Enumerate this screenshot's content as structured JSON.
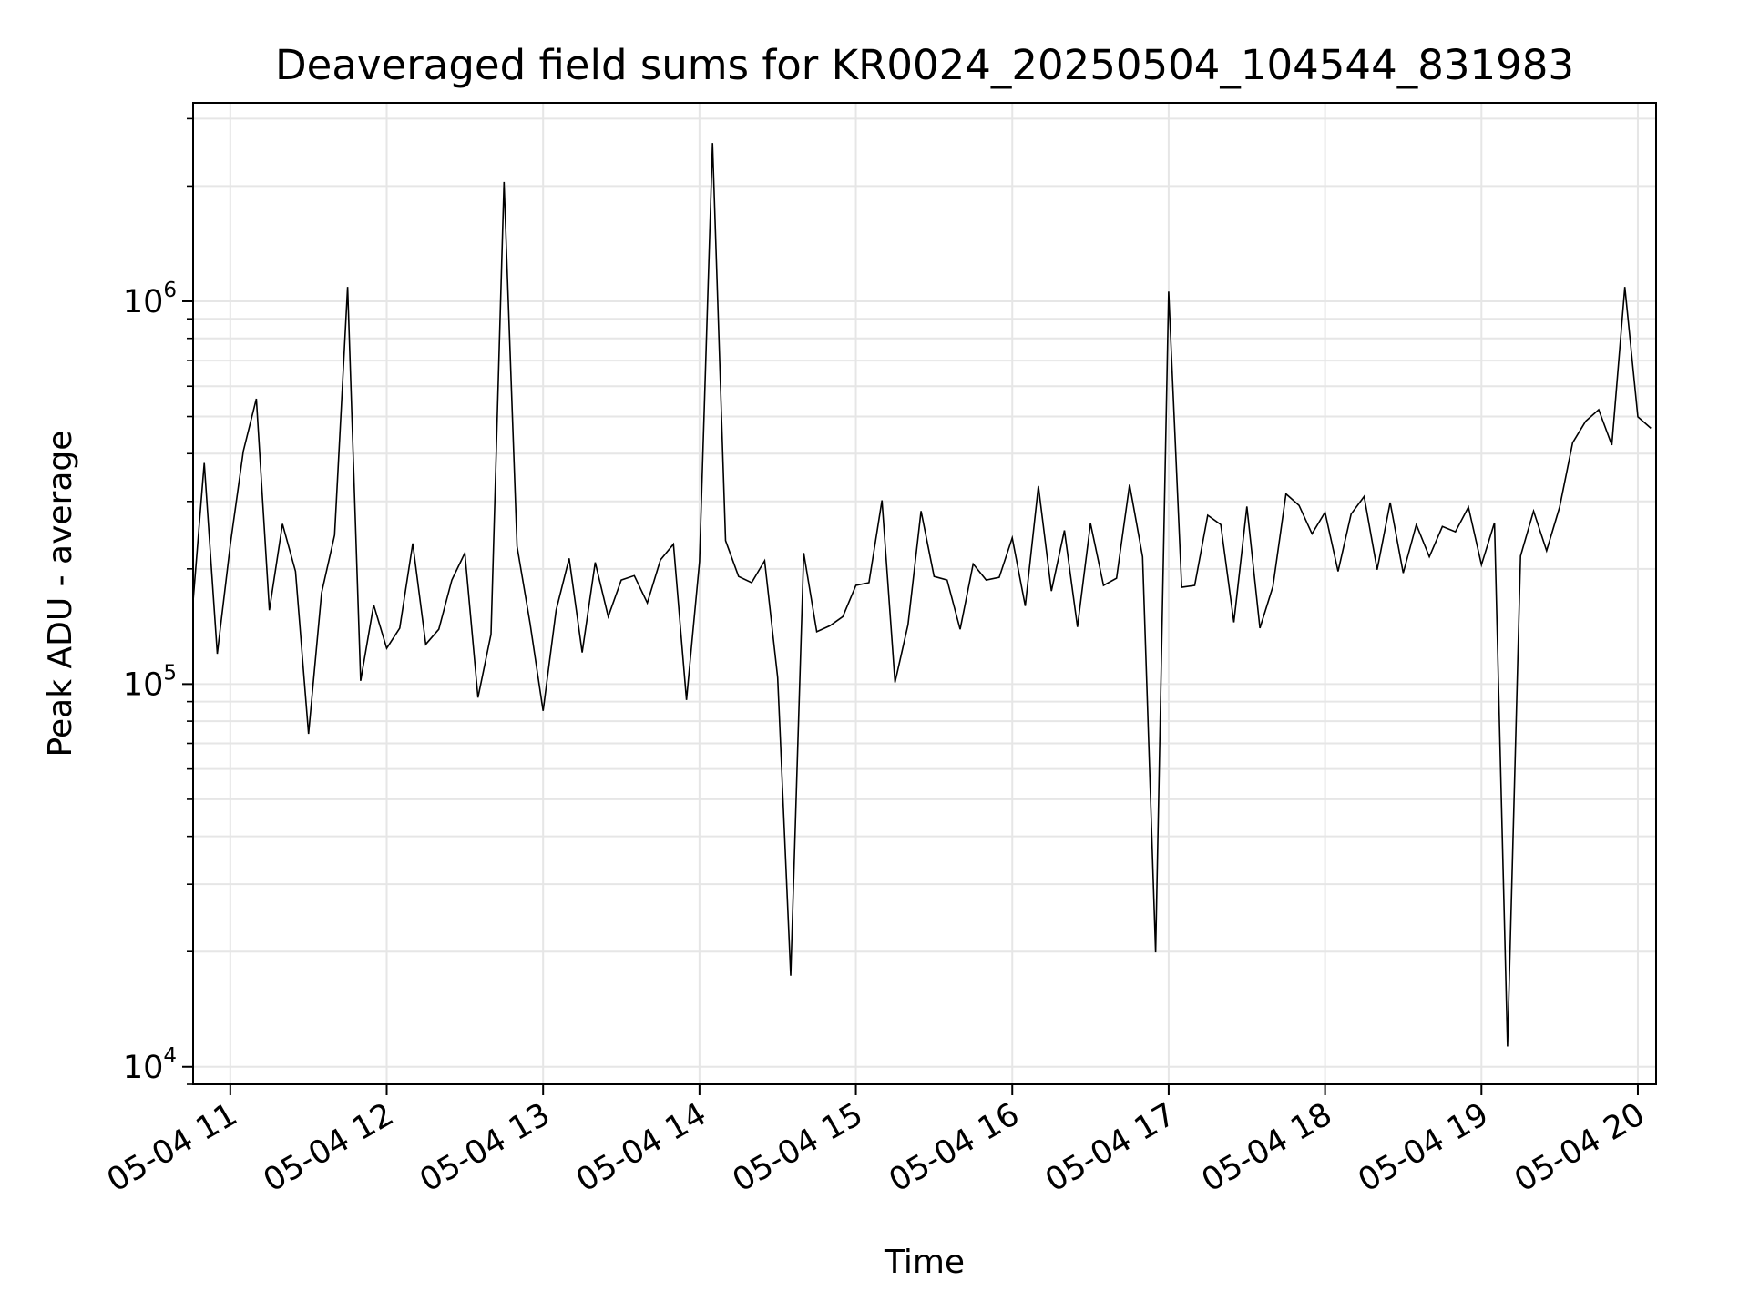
{
  "chart_data": {
    "type": "line",
    "title": "Deaveraged field sums for KR0024_20250504_104544_831983",
    "xlabel": "Time",
    "ylabel": "Peak ADU - average",
    "xlim": [
      "2025-05-04T10:45:44",
      "2025-05-04T20:07:00"
    ],
    "ylim": [
      9000,
      3300000
    ],
    "yscale": "log",
    "grid": true,
    "legend": "none",
    "line_color": "#000000",
    "grid_color": "#e6e6e6",
    "x_ticks": [
      {
        "value": "2025-05-04T11:00",
        "label": "05-04 11"
      },
      {
        "value": "2025-05-04T12:00",
        "label": "05-04 12"
      },
      {
        "value": "2025-05-04T13:00",
        "label": "05-04 13"
      },
      {
        "value": "2025-05-04T14:00",
        "label": "05-04 14"
      },
      {
        "value": "2025-05-04T15:00",
        "label": "05-04 15"
      },
      {
        "value": "2025-05-04T16:00",
        "label": "05-04 16"
      },
      {
        "value": "2025-05-04T17:00",
        "label": "05-04 17"
      },
      {
        "value": "2025-05-04T18:00",
        "label": "05-04 18"
      },
      {
        "value": "2025-05-04T19:00",
        "label": "05-04 19"
      },
      {
        "value": "2025-05-04T20:00",
        "label": "05-04 20"
      }
    ],
    "y_ticks": [
      {
        "value": 10000,
        "base": "10",
        "exp": "4"
      },
      {
        "value": 100000,
        "base": "10",
        "exp": "5"
      },
      {
        "value": 1000000,
        "base": "10",
        "exp": "6"
      }
    ],
    "x": [
      "2025-05-04T10:45",
      "2025-05-04T10:50",
      "2025-05-04T10:55",
      "2025-05-04T11:00",
      "2025-05-04T11:05",
      "2025-05-04T11:10",
      "2025-05-04T11:15",
      "2025-05-04T11:20",
      "2025-05-04T11:25",
      "2025-05-04T11:30",
      "2025-05-04T11:35",
      "2025-05-04T11:40",
      "2025-05-04T11:45",
      "2025-05-04T11:50",
      "2025-05-04T11:55",
      "2025-05-04T12:00",
      "2025-05-04T12:05",
      "2025-05-04T12:10",
      "2025-05-04T12:15",
      "2025-05-04T12:20",
      "2025-05-04T12:25",
      "2025-05-04T12:30",
      "2025-05-04T12:35",
      "2025-05-04T12:40",
      "2025-05-04T12:45",
      "2025-05-04T12:50",
      "2025-05-04T12:55",
      "2025-05-04T13:00",
      "2025-05-04T13:05",
      "2025-05-04T13:10",
      "2025-05-04T13:15",
      "2025-05-04T13:20",
      "2025-05-04T13:25",
      "2025-05-04T13:30",
      "2025-05-04T13:35",
      "2025-05-04T13:40",
      "2025-05-04T13:45",
      "2025-05-04T13:50",
      "2025-05-04T13:55",
      "2025-05-04T14:00",
      "2025-05-04T14:05",
      "2025-05-04T14:10",
      "2025-05-04T14:15",
      "2025-05-04T14:20",
      "2025-05-04T14:25",
      "2025-05-04T14:30",
      "2025-05-04T14:35",
      "2025-05-04T14:40",
      "2025-05-04T14:45",
      "2025-05-04T14:50",
      "2025-05-04T14:55",
      "2025-05-04T15:00",
      "2025-05-04T15:05",
      "2025-05-04T15:10",
      "2025-05-04T15:15",
      "2025-05-04T15:20",
      "2025-05-04T15:25",
      "2025-05-04T15:30",
      "2025-05-04T15:35",
      "2025-05-04T15:40",
      "2025-05-04T15:45",
      "2025-05-04T15:50",
      "2025-05-04T15:55",
      "2025-05-04T16:00",
      "2025-05-04T16:05",
      "2025-05-04T16:10",
      "2025-05-04T16:15",
      "2025-05-04T16:20",
      "2025-05-04T16:25",
      "2025-05-04T16:30",
      "2025-05-04T16:35",
      "2025-05-04T16:40",
      "2025-05-04T16:45",
      "2025-05-04T16:50",
      "2025-05-04T16:55",
      "2025-05-04T17:00",
      "2025-05-04T17:05",
      "2025-05-04T17:10",
      "2025-05-04T17:15",
      "2025-05-04T17:20",
      "2025-05-04T17:25",
      "2025-05-04T17:30",
      "2025-05-04T17:35",
      "2025-05-04T17:40",
      "2025-05-04T17:45",
      "2025-05-04T17:50",
      "2025-05-04T17:55",
      "2025-05-04T18:00",
      "2025-05-04T18:05",
      "2025-05-04T18:10",
      "2025-05-04T18:15",
      "2025-05-04T18:20",
      "2025-05-04T18:25",
      "2025-05-04T18:30",
      "2025-05-04T18:35",
      "2025-05-04T18:40",
      "2025-05-04T18:45",
      "2025-05-04T18:50",
      "2025-05-04T18:55",
      "2025-05-04T19:00",
      "2025-05-04T19:05",
      "2025-05-04T19:10",
      "2025-05-04T19:15",
      "2025-05-04T19:20",
      "2025-05-04T19:25",
      "2025-05-04T19:30",
      "2025-05-04T19:35",
      "2025-05-04T19:40",
      "2025-05-04T19:45",
      "2025-05-04T19:50",
      "2025-05-04T19:55",
      "2025-05-04T20:00",
      "2025-05-04T20:05"
    ],
    "series": [
      {
        "values": [
          165000,
          378000,
          120000,
          231000,
          406000,
          556000,
          156000,
          262000,
          197000,
          74100,
          173000,
          245000,
          1090000,
          102000,
          161000,
          124000,
          140000,
          233000,
          127000,
          139000,
          187000,
          220000,
          92200,
          135000,
          2050000,
          229000,
          144000,
          85100,
          156000,
          213000,
          121000,
          208000,
          150000,
          187000,
          192000,
          163000,
          211000,
          232000,
          90900,
          209000,
          2590000,
          237000,
          191000,
          184000,
          210000,
          104000,
          17300,
          220000,
          137000,
          142000,
          150000,
          181000,
          184000,
          302000,
          101000,
          143000,
          283000,
          191000,
          187000,
          139000,
          206000,
          187000,
          190000,
          241000,
          160000,
          329000,
          175000,
          252000,
          141000,
          263000,
          181000,
          189000,
          332000,
          215000,
          19900,
          1060000,
          179000,
          181000,
          276000,
          261000,
          145000,
          291000,
          140000,
          180000,
          314000,
          293000,
          247000,
          281000,
          197000,
          278000,
          309000,
          199000,
          298000,
          195000,
          261000,
          215000,
          258000,
          250000,
          290000,
          205000,
          264000,
          11300,
          216000,
          283000,
          223000,
          290000,
          427000,
          486000,
          521000,
          421000,
          1090000,
          499000,
          466000
        ]
      }
    ]
  }
}
